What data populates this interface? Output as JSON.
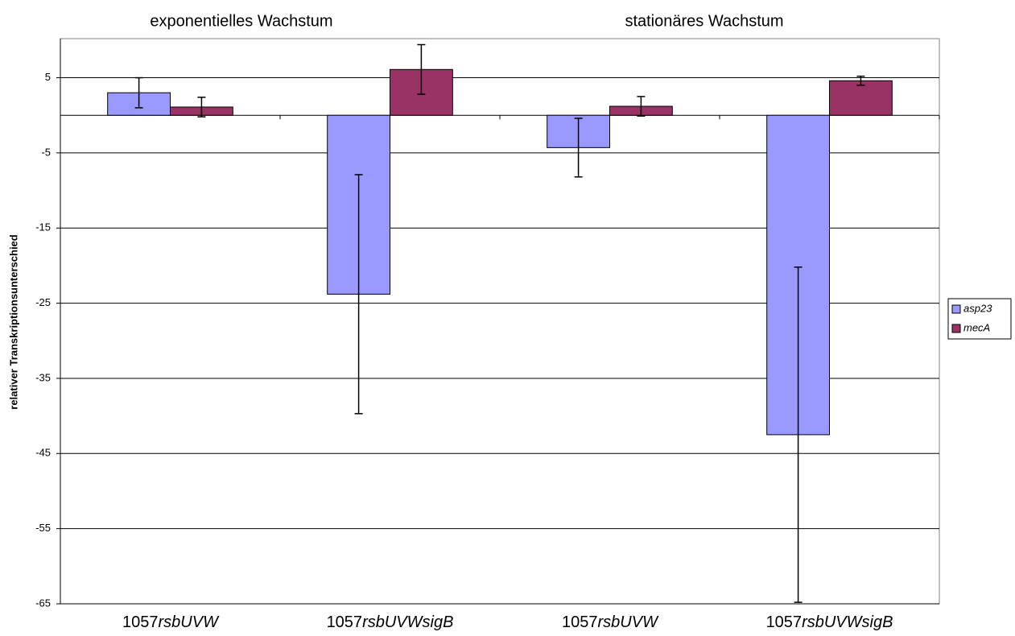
{
  "chart_data": {
    "type": "bar",
    "annotations": [
      "exponentielles Wachstum",
      "stationäres Wachstum"
    ],
    "y_label": "relativer Transkriptionsunterschied",
    "categories": [
      "1057rsbUVW",
      "1057rsbUVWsigB",
      "1057rsbUVW",
      "1057rsbUVWsigB"
    ],
    "series": [
      {
        "name": "asp23",
        "color": "#9999ff",
        "values": [
          3,
          -23.8,
          -4.3,
          -42.5
        ],
        "errors": [
          2,
          15.9,
          3.9,
          22.3
        ]
      },
      {
        "name": "mecA",
        "color": "#993366",
        "values": [
          1.1,
          6.1,
          1.2,
          4.6
        ],
        "errors": [
          1.3,
          3.3,
          1.3,
          0.6
        ]
      }
    ],
    "ylim": [
      -65,
      10.2
    ],
    "yticks": [
      5,
      -5,
      -15,
      -25,
      -35,
      -45,
      -55,
      -65
    ],
    "grid": true,
    "legend": "right"
  }
}
